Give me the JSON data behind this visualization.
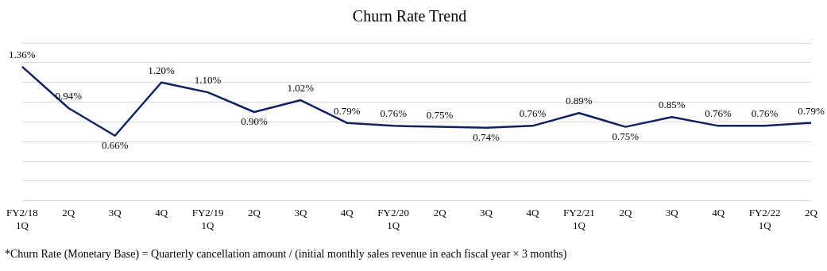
{
  "chart_data": {
    "type": "line",
    "title": "Churn Rate Trend",
    "categories": [
      "FY2/18 1Q",
      "2Q",
      "3Q",
      "4Q",
      "FY2/19 1Q",
      "2Q",
      "3Q",
      "4Q",
      "FY2/20 1Q",
      "2Q",
      "3Q",
      "4Q",
      "FY2/21 1Q",
      "2Q",
      "3Q",
      "4Q",
      "FY2/22 1Q",
      "2Q"
    ],
    "series": [
      {
        "color": "#0f2360",
        "values": [
          1.36,
          0.94,
          0.66,
          1.2,
          1.1,
          0.9,
          1.02,
          0.79,
          0.76,
          0.75,
          0.74,
          0.76,
          0.89,
          0.75,
          0.85,
          0.76,
          0.76,
          0.79
        ],
        "value_labels": [
          "1.36%",
          "0.94%",
          "0.66%",
          "1.20%",
          "1.10%",
          "0.90%",
          "1.02%",
          "0.79%",
          "0.76%",
          "0.75%",
          "0.74%",
          "0.76%",
          "0.89%",
          "0.75%",
          "0.85%",
          "0.76%",
          "0.76%",
          "0.79%"
        ]
      }
    ],
    "ylim": [
      0,
      1.6
    ],
    "yticks": [
      {
        "value": 0,
        "label": null
      },
      {
        "value": 0.2,
        "label": null
      },
      {
        "value": 0.4,
        "label": null
      },
      {
        "value": 0.6,
        "label": null
      },
      {
        "value": 0.8,
        "label": null
      },
      {
        "value": 1.0,
        "label": null
      },
      {
        "value": 1.2,
        "label": null
      },
      {
        "value": 1.4,
        "label": null
      },
      {
        "value": 1.6,
        "label": null
      }
    ],
    "tick_labels": "x",
    "grid": "y",
    "legend": false,
    "marker": "none",
    "line_style": "solid",
    "annotations": [
      "*Churn Rate (Monetary Base) = Quarterly cancellation amount / (initial monthly sales revenue in each fiscal year × 3 months)"
    ]
  }
}
